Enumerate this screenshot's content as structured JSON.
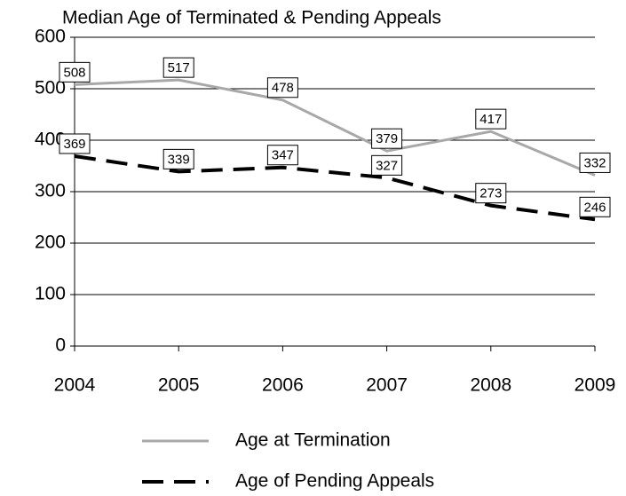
{
  "chart_data": {
    "type": "line",
    "title": "Median Age of Terminated & Pending Appeals",
    "x": [
      2004,
      2005,
      2006,
      2007,
      2008,
      2009
    ],
    "series": [
      {
        "name": "Age at Termination",
        "color": "#a8a8a8",
        "values": [
          508,
          517,
          478,
          379,
          417,
          332
        ]
      },
      {
        "name": "Age of Pending Appeals",
        "color": "#000000",
        "values": [
          369,
          339,
          347,
          327,
          273,
          246
        ]
      }
    ],
    "xlim": [
      2004,
      2009
    ],
    "xticks": [
      2004,
      2005,
      2006,
      2007,
      2008,
      2009
    ],
    "ylim": [
      0,
      600
    ],
    "yticks": [
      0,
      100,
      200,
      300,
      400,
      500,
      600
    ],
    "grid": true
  }
}
